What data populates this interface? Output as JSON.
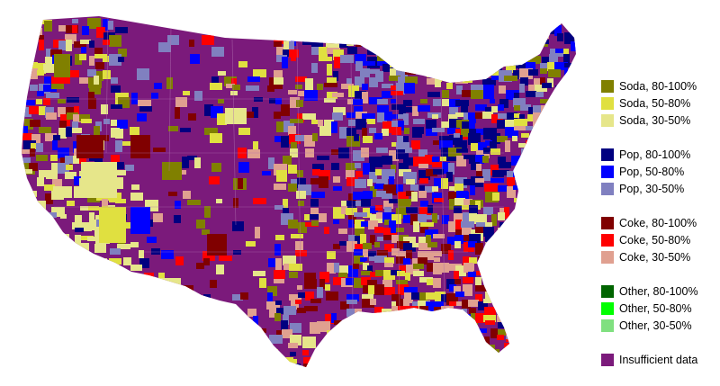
{
  "map": {
    "region": "contiguous United States, county level",
    "base_color": "#7b1a7b",
    "dominant_category": "Insufficient data"
  },
  "legend": {
    "groups": [
      {
        "term": "Soda",
        "items": [
          {
            "label": "Soda, 80-100%",
            "color": "#808000"
          },
          {
            "label": "Soda, 50-80%",
            "color": "#e0e040"
          },
          {
            "label": "Soda, 30-50%",
            "color": "#e6e68a"
          }
        ]
      },
      {
        "term": "Pop",
        "items": [
          {
            "label": "Pop, 80-100%",
            "color": "#000080"
          },
          {
            "label": "Pop, 50-80%",
            "color": "#0000ff"
          },
          {
            "label": "Pop, 30-50%",
            "color": "#8080c0"
          }
        ]
      },
      {
        "term": "Coke",
        "items": [
          {
            "label": "Coke, 80-100%",
            "color": "#800000"
          },
          {
            "label": "Coke, 50-80%",
            "color": "#ff0000"
          },
          {
            "label": "Coke, 30-50%",
            "color": "#e0a090"
          }
        ]
      },
      {
        "term": "Other",
        "items": [
          {
            "label": "Other, 80-100%",
            "color": "#006400"
          },
          {
            "label": "Other, 50-80%",
            "color": "#00ff00"
          },
          {
            "label": "Other, 30-50%",
            "color": "#80e080"
          }
        ]
      },
      {
        "term": "Insufficient data",
        "items": [
          {
            "label": "Insufficient data",
            "color": "#7b1a7b"
          }
        ]
      }
    ]
  }
}
